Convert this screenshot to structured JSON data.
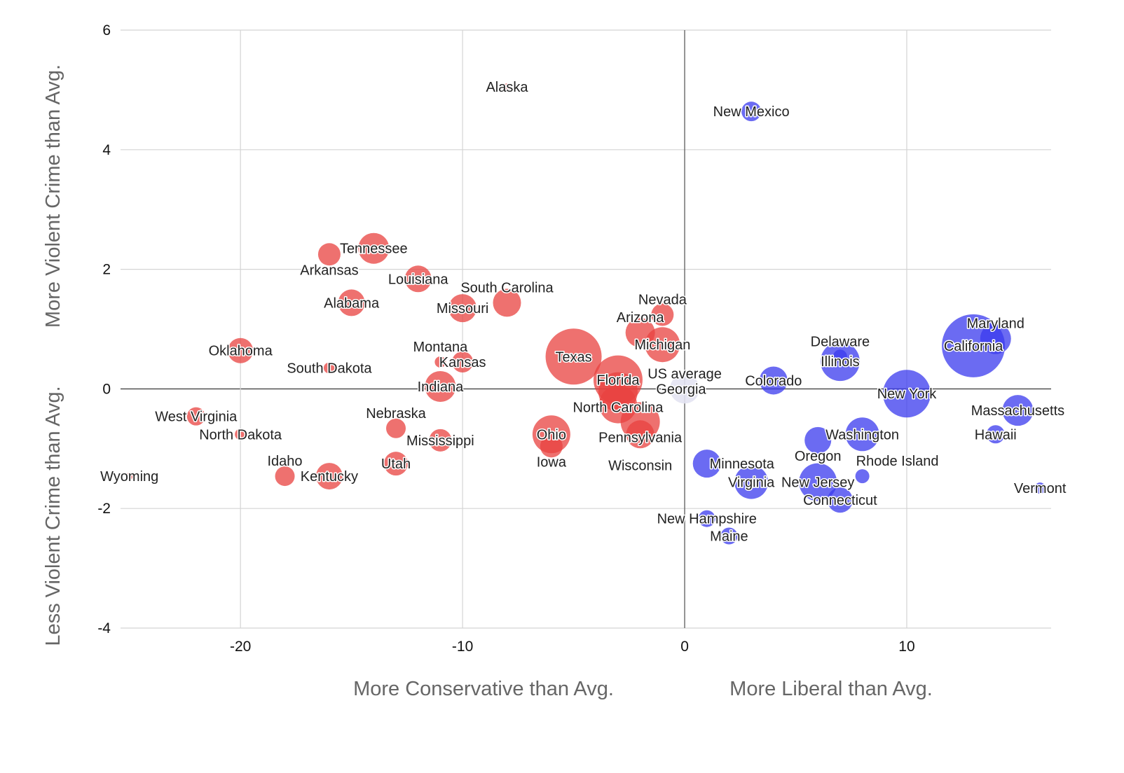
{
  "chart_data": {
    "type": "bubble",
    "title": "",
    "xlabels": [
      "More Conservative than Avg.",
      "More Liberal than Avg."
    ],
    "ylabels": [
      "More Violent Crime than Avg.",
      "Less Violent Crime than Avg."
    ],
    "xlim": [
      -25.4,
      16.5
    ],
    "ylim": [
      -4,
      6
    ],
    "xticks": [
      -20,
      -10,
      0,
      10
    ],
    "yticks": [
      -4,
      -2,
      0,
      2,
      4,
      6
    ],
    "grid": true,
    "colors": {
      "conservative": "#e8423f",
      "liberal": "#3a3aee",
      "average": "#e3e3f2"
    },
    "points": [
      {
        "label": "Alaska",
        "x": -8,
        "y": 5.05,
        "size": 5,
        "group": "conservative"
      },
      {
        "label": "New Mexico",
        "x": 3,
        "y": 4.64,
        "size": 14,
        "group": "liberal"
      },
      {
        "label": "Arkansas",
        "x": -16,
        "y": 2.25,
        "size": 16,
        "group": "conservative"
      },
      {
        "label": "Tennessee",
        "x": -14,
        "y": 2.35,
        "size": 22,
        "group": "conservative"
      },
      {
        "label": "Louisiana",
        "x": -12,
        "y": 1.84,
        "size": 19,
        "group": "conservative"
      },
      {
        "label": "Alabama",
        "x": -15,
        "y": 1.44,
        "size": 19,
        "group": "conservative"
      },
      {
        "label": "Missouri",
        "x": -10,
        "y": 1.35,
        "size": 20,
        "group": "conservative"
      },
      {
        "label": "South Carolina",
        "x": -8,
        "y": 1.44,
        "size": 20,
        "group": "conservative"
      },
      {
        "label": "Nevada",
        "x": -1,
        "y": 1.24,
        "size": 16,
        "group": "conservative"
      },
      {
        "label": "Arizona",
        "x": -2,
        "y": 0.94,
        "size": 21,
        "group": "conservative"
      },
      {
        "label": "Michigan",
        "x": -1,
        "y": 0.74,
        "size": 25,
        "group": "conservative"
      },
      {
        "label": "Oklahoma",
        "x": -20,
        "y": 0.64,
        "size": 18,
        "group": "conservative"
      },
      {
        "label": "South Dakota",
        "x": -16,
        "y": 0.35,
        "size": 8,
        "group": "conservative"
      },
      {
        "label": "Montana",
        "x": -11,
        "y": 0.45,
        "size": 8,
        "group": "conservative"
      },
      {
        "label": "Kansas",
        "x": -10,
        "y": 0.45,
        "size": 15,
        "group": "conservative"
      },
      {
        "label": "Texas",
        "x": -5,
        "y": 0.54,
        "size": 40,
        "group": "conservative"
      },
      {
        "label": "Indiana",
        "x": -11,
        "y": 0.04,
        "size": 22,
        "group": "conservative"
      },
      {
        "label": "Florida",
        "x": -3,
        "y": 0.15,
        "size": 35,
        "group": "conservative"
      },
      {
        "label": "North Carolina",
        "x": -3,
        "y": -0.05,
        "size": 28,
        "group": "conservative"
      },
      {
        "label": "Georgia",
        "x": -3,
        "y": -0.26,
        "size": 27,
        "group": "conservative"
      },
      {
        "label": "Pennsylvania",
        "x": -2,
        "y": -0.55,
        "size": 28,
        "group": "conservative"
      },
      {
        "label": "Wisconsin",
        "x": -2,
        "y": -0.76,
        "size": 20,
        "group": "conservative"
      },
      {
        "label": "Ohio",
        "x": -6,
        "y": -0.76,
        "size": 27,
        "group": "conservative"
      },
      {
        "label": "Iowa",
        "x": -6,
        "y": -0.96,
        "size": 16,
        "group": "conservative"
      },
      {
        "label": "West Virginia",
        "x": -22,
        "y": -0.46,
        "size": 13,
        "group": "conservative"
      },
      {
        "label": "North Dakota",
        "x": -20,
        "y": -0.76,
        "size": 8,
        "group": "conservative"
      },
      {
        "label": "Nebraska",
        "x": -13,
        "y": -0.66,
        "size": 14,
        "group": "conservative"
      },
      {
        "label": "Mississippi",
        "x": -11,
        "y": -0.86,
        "size": 16,
        "group": "conservative"
      },
      {
        "label": "Utah",
        "x": -13,
        "y": -1.25,
        "size": 17,
        "group": "conservative"
      },
      {
        "label": "Idaho",
        "x": -18,
        "y": -1.46,
        "size": 14,
        "group": "conservative"
      },
      {
        "label": "Kentucky",
        "x": -16,
        "y": -1.46,
        "size": 19,
        "group": "conservative"
      },
      {
        "label": "Wyoming",
        "x": -25,
        "y": -1.46,
        "size": 5,
        "group": "conservative"
      },
      {
        "label": "US average",
        "x": 0,
        "y": 0,
        "size": 21,
        "group": "average"
      },
      {
        "label": "Colorado",
        "x": 4,
        "y": 0.14,
        "size": 20,
        "group": "liberal"
      },
      {
        "label": "Illinois",
        "x": 7,
        "y": 0.46,
        "size": 28,
        "group": "liberal"
      },
      {
        "label": "Delaware",
        "x": 7,
        "y": 0.54,
        "size": 10,
        "group": "liberal"
      },
      {
        "label": "New York",
        "x": 10,
        "y": -0.08,
        "size": 34,
        "group": "liberal"
      },
      {
        "label": "California",
        "x": 13,
        "y": 0.72,
        "size": 45,
        "group": "liberal"
      },
      {
        "label": "Maryland",
        "x": 14,
        "y": 0.84,
        "size": 22,
        "group": "liberal"
      },
      {
        "label": "Massachusetts",
        "x": 15,
        "y": -0.36,
        "size": 22,
        "group": "liberal"
      },
      {
        "label": "Hawaii",
        "x": 14,
        "y": -0.76,
        "size": 13,
        "group": "liberal"
      },
      {
        "label": "Washington",
        "x": 8,
        "y": -0.76,
        "size": 24,
        "group": "liberal"
      },
      {
        "label": "Oregon",
        "x": 6,
        "y": -0.86,
        "size": 19,
        "group": "liberal"
      },
      {
        "label": "Minnesota",
        "x": 1,
        "y": -1.25,
        "size": 20,
        "group": "liberal"
      },
      {
        "label": "Virginia",
        "x": 3,
        "y": -1.56,
        "size": 24,
        "group": "liberal"
      },
      {
        "label": "New Jersey",
        "x": 6,
        "y": -1.56,
        "size": 27,
        "group": "liberal"
      },
      {
        "label": "Rhode Island",
        "x": 8,
        "y": -1.46,
        "size": 10,
        "group": "liberal"
      },
      {
        "label": "Connecticut",
        "x": 7,
        "y": -1.86,
        "size": 18,
        "group": "liberal"
      },
      {
        "label": "New Hampshire",
        "x": 1,
        "y": -2.17,
        "size": 12,
        "group": "liberal"
      },
      {
        "label": "Maine",
        "x": 2,
        "y": -2.46,
        "size": 12,
        "group": "liberal"
      },
      {
        "label": "Vermont",
        "x": 16,
        "y": -1.66,
        "size": 8,
        "group": "liberal"
      }
    ]
  }
}
